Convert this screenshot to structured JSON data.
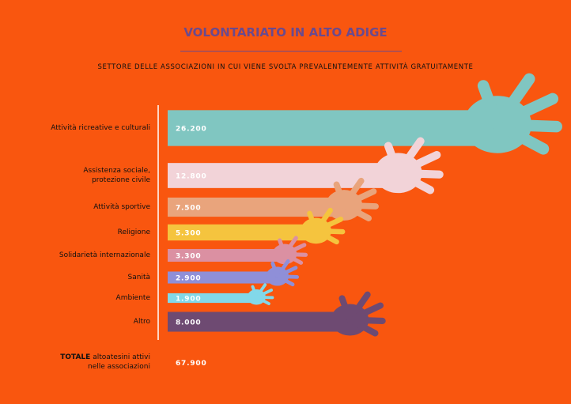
{
  "chart_data": {
    "type": "bar",
    "title": "VOLONTARIATO IN ALTO ADIGE",
    "subtitle": "SETTORE DELLE ASSOCIAZIONI IN CUI VIENE SVOLTA PREVALENTEMENTE ATTIVITÀ GRATUITAMENTE",
    "categories": [
      "Attività ricreative e culturali",
      "Assistenza sociale,\nprotezione civile",
      "Attività sportive",
      "Religione",
      "Solidarietà internazionale",
      "Sanità",
      "Ambiente",
      "Altro"
    ],
    "values": [
      26200,
      12800,
      7500,
      5300,
      3300,
      2900,
      1900,
      8000
    ],
    "value_labels": [
      "26.200",
      "12.800",
      "7.500",
      "5.300",
      "3.300",
      "2.900",
      "1.900",
      "8.000"
    ],
    "colors": [
      "#80c6c1",
      "#f2d3d8",
      "#e9a47c",
      "#f5c43e",
      "#db90a2",
      "#8f8fd8",
      "#82d8e9",
      "#6e4a72"
    ],
    "total_label": {
      "bold": "TOTALE",
      "text": "altoatesini attivi\nnelle associazioni"
    },
    "total": 67900,
    "total_value_label": "67.900"
  }
}
